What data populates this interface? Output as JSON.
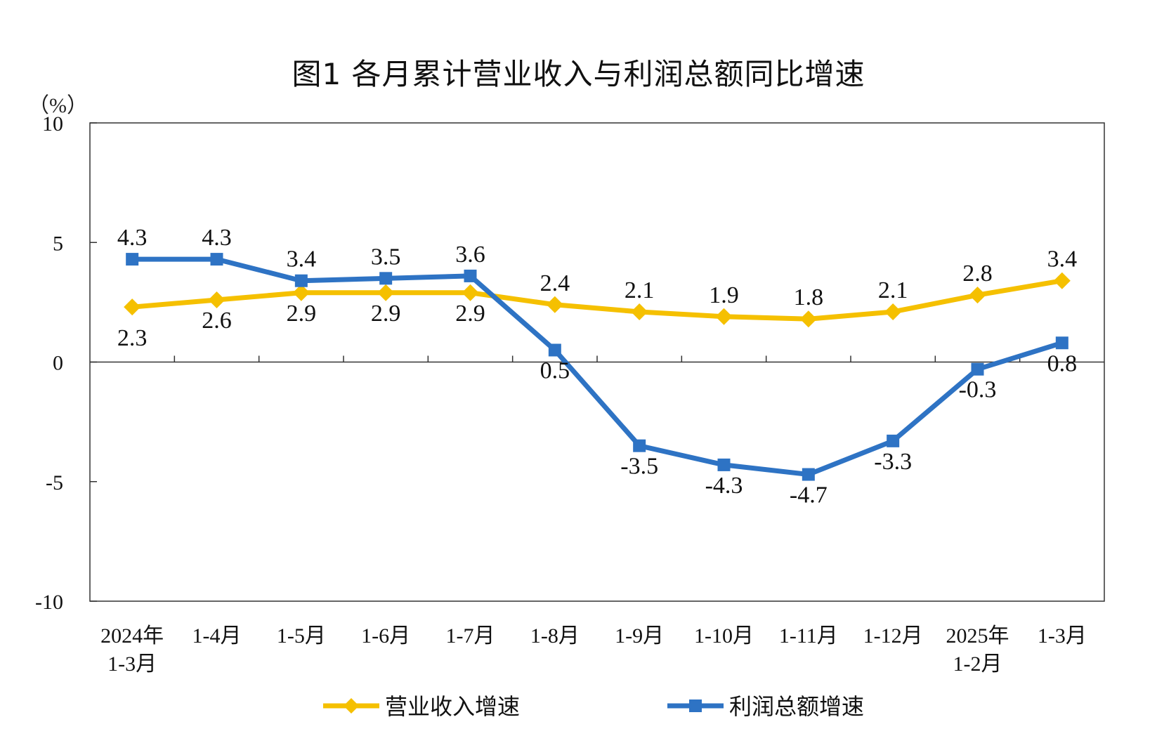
{
  "chart_data": {
    "type": "line",
    "title": "图1  各月累计营业收入与利润总额同比增速",
    "ylabel": "（%）",
    "ylim": [
      -10,
      10
    ],
    "yticks": [
      10,
      5,
      0,
      -5,
      -10
    ],
    "grid": false,
    "legend_position": "bottom",
    "categories": [
      [
        "2024年",
        "1-3月"
      ],
      [
        "1-4月"
      ],
      [
        "1-5月"
      ],
      [
        "1-6月"
      ],
      [
        "1-7月"
      ],
      [
        "1-8月"
      ],
      [
        "1-9月"
      ],
      [
        "1-10月"
      ],
      [
        "1-11月"
      ],
      [
        "1-12月"
      ],
      [
        "2025年",
        "1-2月"
      ],
      [
        "1-3月"
      ]
    ],
    "series": [
      {
        "name": "营业收入增速",
        "color": "#F5C000",
        "marker": "diamond",
        "values": [
          2.3,
          2.6,
          2.9,
          2.9,
          2.9,
          2.4,
          2.1,
          1.9,
          1.8,
          2.1,
          2.8,
          3.4
        ]
      },
      {
        "name": "利润总额增速",
        "color": "#2E73C4",
        "marker": "square",
        "values": [
          4.3,
          4.3,
          3.4,
          3.5,
          3.6,
          0.5,
          -3.5,
          -4.3,
          -4.7,
          -3.3,
          -0.3,
          0.8
        ]
      }
    ]
  }
}
